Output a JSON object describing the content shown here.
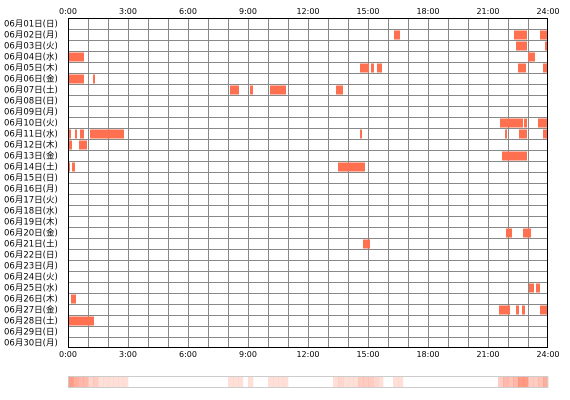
{
  "chart_data": {
    "type": "heatmap",
    "x_range": [
      "0:00",
      "24:00"
    ],
    "x_ticks": [
      "0:00",
      "3:00",
      "6:00",
      "9:00",
      "12:00",
      "15:00",
      "18:00",
      "21:00",
      "24:00"
    ],
    "grid": true,
    "colors": {
      "activity": "#ff7050",
      "grid": "#888888",
      "border": "#000000"
    },
    "rows": [
      {
        "label": "06月01日(日)",
        "segments": []
      },
      {
        "label": "06月02日(月)",
        "segments": [
          [
            16.3,
            16.6
          ],
          [
            22.3,
            22.95
          ],
          [
            23.6,
            24.0
          ]
        ]
      },
      {
        "label": "06月03日(火)",
        "segments": [
          [
            22.4,
            22.95
          ],
          [
            23.85,
            24.0
          ]
        ]
      },
      {
        "label": "06月04日(水)",
        "segments": [
          [
            0.0,
            0.8
          ],
          [
            23.0,
            23.35
          ]
        ]
      },
      {
        "label": "06月05日(木)",
        "segments": [
          [
            14.6,
            15.05
          ],
          [
            15.15,
            15.3
          ],
          [
            15.45,
            15.7
          ],
          [
            22.5,
            22.9
          ],
          [
            23.75,
            24.0
          ]
        ]
      },
      {
        "label": "06月06日(金)",
        "segments": [
          [
            0.0,
            0.8
          ],
          [
            1.25,
            1.35
          ]
        ]
      },
      {
        "label": "06月07日(土)",
        "segments": [
          [
            8.1,
            8.55
          ],
          [
            9.1,
            9.25
          ],
          [
            10.1,
            10.9
          ],
          [
            13.4,
            13.75
          ]
        ]
      },
      {
        "label": "06月08日(日)",
        "segments": []
      },
      {
        "label": "06月09日(月)",
        "segments": []
      },
      {
        "label": "06月10日(火)",
        "segments": [
          [
            21.6,
            22.75
          ],
          [
            22.8,
            22.95
          ],
          [
            23.5,
            23.95
          ]
        ]
      },
      {
        "label": "06月11日(水)",
        "segments": [
          [
            0.0,
            0.15
          ],
          [
            0.35,
            0.45
          ],
          [
            0.6,
            0.8
          ],
          [
            1.1,
            2.8
          ],
          [
            14.6,
            14.7
          ],
          [
            21.85,
            21.95
          ],
          [
            22.55,
            22.95
          ],
          [
            23.75,
            24.0
          ]
        ]
      },
      {
        "label": "06月12日(木)",
        "segments": [
          [
            0.0,
            0.2
          ],
          [
            0.55,
            0.95
          ]
        ]
      },
      {
        "label": "06月13日(金)",
        "segments": [
          [
            21.7,
            22.95
          ]
        ]
      },
      {
        "label": "06月14日(土)",
        "segments": [
          [
            0.0,
            0.1
          ],
          [
            0.2,
            0.35
          ],
          [
            13.5,
            14.85
          ]
        ]
      },
      {
        "label": "06月15日(日)",
        "segments": []
      },
      {
        "label": "06月16日(月)",
        "segments": []
      },
      {
        "label": "06月17日(火)",
        "segments": []
      },
      {
        "label": "06月18日(水)",
        "segments": []
      },
      {
        "label": "06月19日(木)",
        "segments": []
      },
      {
        "label": "06月20日(金)",
        "segments": [
          [
            21.9,
            22.2
          ],
          [
            22.75,
            23.15
          ]
        ]
      },
      {
        "label": "06月21日(土)",
        "segments": [
          [
            14.75,
            15.1
          ]
        ]
      },
      {
        "label": "06月22日(日)",
        "segments": []
      },
      {
        "label": "06月23日(月)",
        "segments": []
      },
      {
        "label": "06月24日(火)",
        "segments": []
      },
      {
        "label": "06月25日(水)",
        "segments": [
          [
            23.05,
            23.3
          ],
          [
            23.4,
            23.6
          ]
        ]
      },
      {
        "label": "06月26日(木)",
        "segments": [
          [
            0.15,
            0.4
          ]
        ]
      },
      {
        "label": "06月27日(金)",
        "segments": [
          [
            21.55,
            22.1
          ],
          [
            22.4,
            22.55
          ],
          [
            22.7,
            22.85
          ],
          [
            23.6,
            24.0
          ]
        ]
      },
      {
        "label": "06月28日(土)",
        "segments": [
          [
            0.0,
            1.3
          ]
        ]
      },
      {
        "label": "06月29日(日)",
        "segments": []
      },
      {
        "label": "06月30日(月)",
        "segments": []
      }
    ]
  }
}
